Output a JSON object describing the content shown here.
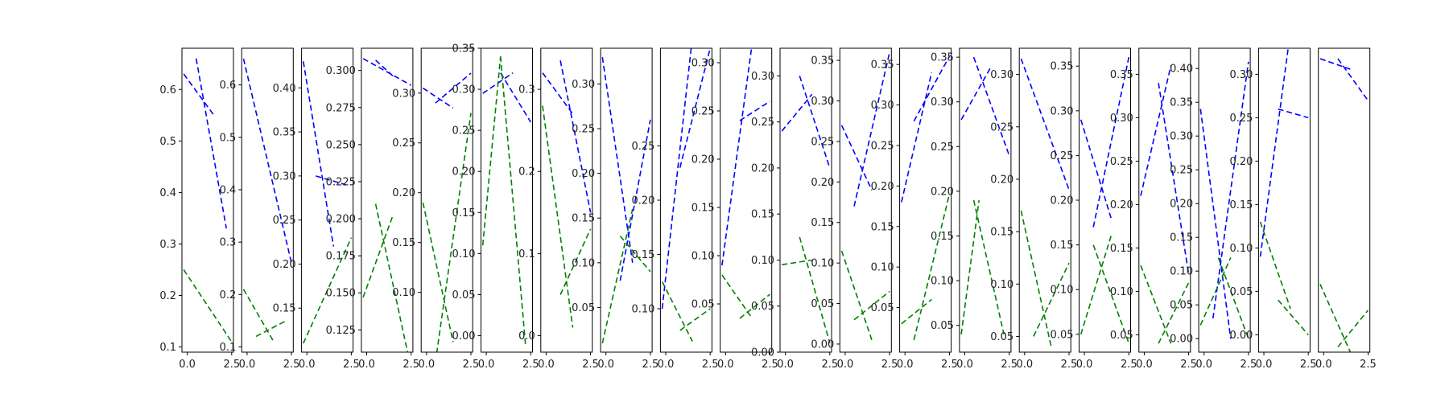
{
  "chart_data": [
    {
      "type": "line",
      "ylim": [
        0.09,
        0.68
      ],
      "yticks": [
        "0.1",
        "0.2",
        "0.3",
        "0.4",
        "0.5",
        "0.6"
      ],
      "series": [
        {
          "color": "#0000ff",
          "x": [
            -0.2,
            1.5
          ],
          "y": [
            0.63,
            0.55
          ]
        },
        {
          "color": "#0000ff",
          "x": [
            0.5,
            2.2
          ],
          "y": [
            0.66,
            0.33
          ]
        },
        {
          "color": "#008000",
          "x": [
            -0.2,
            2.5
          ],
          "y": [
            0.25,
            0.11
          ]
        }
      ]
    },
    {
      "type": "line",
      "ylim": [
        0.09,
        0.67
      ],
      "yticks": [
        "0.1",
        "0.2",
        "0.3",
        "0.4",
        "0.5",
        "0.6"
      ],
      "series": [
        {
          "color": "#0000ff",
          "x": [
            -0.2,
            2.5
          ],
          "y": [
            0.65,
            0.26
          ]
        },
        {
          "color": "#008000",
          "x": [
            -0.2,
            1.5
          ],
          "y": [
            0.21,
            0.11
          ]
        },
        {
          "color": "#008000",
          "x": [
            0.5,
            2.2
          ],
          "y": [
            0.12,
            0.15
          ]
        }
      ]
    },
    {
      "type": "line",
      "ylim": [
        0.1,
        0.445
      ],
      "yticks": [
        "0.15",
        "0.20",
        "0.25",
        "0.30",
        "0.35",
        "0.40"
      ],
      "series": [
        {
          "color": "#0000ff",
          "x": [
            -0.2,
            1.5
          ],
          "y": [
            0.43,
            0.22
          ]
        },
        {
          "color": "#0000ff",
          "x": [
            0.5,
            2.2
          ],
          "y": [
            0.3,
            0.29
          ]
        },
        {
          "color": "#008000",
          "x": [
            -0.2,
            2.5
          ],
          "y": [
            0.11,
            0.23
          ]
        }
      ]
    },
    {
      "type": "line",
      "ylim": [
        0.11,
        0.315
      ],
      "yticks": [
        "0.125",
        "0.150",
        "0.175",
        "0.200",
        "0.225",
        "0.250",
        "0.275",
        "0.300"
      ],
      "series": [
        {
          "color": "#0000ff",
          "x": [
            -0.2,
            2.5
          ],
          "y": [
            0.308,
            0.29
          ]
        },
        {
          "color": "#0000ff",
          "x": [
            0.5,
            1.5
          ],
          "y": [
            0.307,
            0.296
          ]
        },
        {
          "color": "#008000",
          "x": [
            -0.2,
            1.5
          ],
          "y": [
            0.147,
            0.203
          ]
        },
        {
          "color": "#008000",
          "x": [
            0.5,
            2.3
          ],
          "y": [
            0.21,
            0.11
          ]
        }
      ]
    },
    {
      "type": "line",
      "ylim": [
        0.04,
        0.345
      ],
      "yticks": [
        "0.10",
        "0.15",
        "0.20",
        "0.25",
        "0.30"
      ],
      "series": [
        {
          "color": "#0000ff",
          "x": [
            -0.2,
            1.5
          ],
          "y": [
            0.305,
            0.285
          ]
        },
        {
          "color": "#0000ff",
          "x": [
            0.5,
            2.5
          ],
          "y": [
            0.29,
            0.32
          ]
        },
        {
          "color": "#008000",
          "x": [
            -0.2,
            1.5
          ],
          "y": [
            0.19,
            0.05
          ]
        },
        {
          "color": "#008000",
          "x": [
            0.5,
            2.5
          ],
          "y": [
            0.03,
            0.28
          ]
        }
      ]
    },
    {
      "type": "line",
      "ylim": [
        -0.02,
        0.35
      ],
      "yticks": [
        "0.00",
        "0.05",
        "0.10",
        "0.15",
        "0.20",
        "0.25",
        "0.30",
        "0.35"
      ],
      "series": [
        {
          "color": "#0000ff",
          "x": [
            -0.2,
            1.5
          ],
          "y": [
            0.295,
            0.32
          ]
        },
        {
          "color": "#0000ff",
          "x": [
            0.8,
            2.5
          ],
          "y": [
            0.32,
            0.26
          ]
        },
        {
          "color": "#008000",
          "x": [
            -0.2,
            0.8
          ],
          "y": [
            0.11,
            0.34
          ]
        },
        {
          "color": "#008000",
          "x": [
            0.8,
            2.2
          ],
          "y": [
            0.34,
            -0.01
          ]
        }
      ]
    },
    {
      "type": "line",
      "ylim": [
        -0.02,
        0.35
      ],
      "yticks": [
        "0.0",
        "0.1",
        "0.2",
        "0.3"
      ],
      "series": [
        {
          "color": "#0000ff",
          "x": [
            -0.2,
            1.5
          ],
          "y": [
            0.32,
            0.27
          ]
        },
        {
          "color": "#0000ff",
          "x": [
            0.8,
            2.5
          ],
          "y": [
            0.335,
            0.15
          ]
        },
        {
          "color": "#008000",
          "x": [
            -0.2,
            1.5
          ],
          "y": [
            0.28,
            0.01
          ]
        },
        {
          "color": "#008000",
          "x": [
            0.8,
            2.5
          ],
          "y": [
            0.05,
            0.13
          ]
        }
      ]
    },
    {
      "type": "line",
      "ylim": [
        0.0,
        0.34
      ],
      "yticks": [
        "0.05",
        "0.10",
        "0.15",
        "0.20",
        "0.25",
        "0.30"
      ],
      "series": [
        {
          "color": "#0000ff",
          "x": [
            -0.2,
            1.5
          ],
          "y": [
            0.33,
            0.1
          ]
        },
        {
          "color": "#0000ff",
          "x": [
            0.8,
            2.5
          ],
          "y": [
            0.08,
            0.26
          ]
        },
        {
          "color": "#008000",
          "x": [
            -0.2,
            1.5
          ],
          "y": [
            0.01,
            0.16
          ]
        },
        {
          "color": "#008000",
          "x": [
            0.8,
            2.5
          ],
          "y": [
            0.13,
            0.09
          ]
        }
      ]
    },
    {
      "type": "line",
      "ylim": [
        0.06,
        0.34
      ],
      "yticks": [
        "0.10",
        "0.15",
        "0.20",
        "0.25"
      ],
      "series": [
        {
          "color": "#0000ff",
          "x": [
            -0.2,
            1.5
          ],
          "y": [
            0.1,
            0.35
          ]
        },
        {
          "color": "#0000ff",
          "x": [
            0.8,
            2.5
          ],
          "y": [
            0.23,
            0.34
          ]
        },
        {
          "color": "#008000",
          "x": [
            -0.2,
            1.5
          ],
          "y": [
            0.125,
            0.07
          ]
        },
        {
          "color": "#008000",
          "x": [
            0.8,
            2.5
          ],
          "y": [
            0.08,
            0.1
          ]
        }
      ]
    },
    {
      "type": "line",
      "ylim": [
        0.0,
        0.315
      ],
      "yticks": [
        "0.05",
        "0.10",
        "0.15",
        "0.20",
        "0.25",
        "0.30"
      ],
      "series": [
        {
          "color": "#0000ff",
          "x": [
            -0.2,
            1.5
          ],
          "y": [
            0.09,
            0.32
          ]
        },
        {
          "color": "#0000ff",
          "x": [
            0.8,
            2.5
          ],
          "y": [
            0.24,
            0.26
          ]
        },
        {
          "color": "#008000",
          "x": [
            -0.2,
            1.5
          ],
          "y": [
            0.08,
            0.035
          ]
        },
        {
          "color": "#008000",
          "x": [
            0.8,
            2.5
          ],
          "y": [
            0.035,
            0.06
          ]
        }
      ]
    },
    {
      "type": "line",
      "ylim": [
        0.0,
        0.33
      ],
      "yticks": [
        "0.00",
        "0.05",
        "0.10",
        "0.15",
        "0.20",
        "0.25",
        "0.30"
      ],
      "series": [
        {
          "color": "#0000ff",
          "x": [
            -0.2,
            1.5
          ],
          "y": [
            0.24,
            0.28
          ]
        },
        {
          "color": "#0000ff",
          "x": [
            0.8,
            2.5
          ],
          "y": [
            0.3,
            0.2
          ]
        },
        {
          "color": "#008000",
          "x": [
            -0.2,
            1.5
          ],
          "y": [
            0.095,
            0.1
          ]
        },
        {
          "color": "#008000",
          "x": [
            0.8,
            2.5
          ],
          "y": [
            0.125,
            0.01
          ]
        }
      ]
    },
    {
      "type": "line",
      "ylim": [
        -0.01,
        0.365
      ],
      "yticks": [
        "0.00",
        "0.05",
        "0.10",
        "0.15",
        "0.20",
        "0.25",
        "0.30",
        "0.35"
      ],
      "series": [
        {
          "color": "#0000ff",
          "x": [
            -0.2,
            1.5
          ],
          "y": [
            0.27,
            0.19
          ]
        },
        {
          "color": "#0000ff",
          "x": [
            0.5,
            2.5
          ],
          "y": [
            0.17,
            0.36
          ]
        },
        {
          "color": "#008000",
          "x": [
            -0.2,
            1.5
          ],
          "y": [
            0.115,
            0.005
          ]
        },
        {
          "color": "#008000",
          "x": [
            0.5,
            2.5
          ],
          "y": [
            0.03,
            0.065
          ]
        }
      ]
    },
    {
      "type": "line",
      "ylim": [
        -0.005,
        0.37
      ],
      "yticks": [
        "0.05",
        "0.10",
        "0.15",
        "0.20",
        "0.25",
        "0.30",
        "0.35"
      ],
      "series": [
        {
          "color": "#0000ff",
          "x": [
            -0.2,
            1.5
          ],
          "y": [
            0.18,
            0.34
          ]
        },
        {
          "color": "#0000ff",
          "x": [
            0.5,
            2.5
          ],
          "y": [
            0.28,
            0.36
          ]
        },
        {
          "color": "#008000",
          "x": [
            -0.2,
            1.5
          ],
          "y": [
            0.03,
            0.06
          ]
        },
        {
          "color": "#008000",
          "x": [
            0.5,
            2.5
          ],
          "y": [
            0.01,
            0.19
          ]
        }
      ]
    },
    {
      "type": "line",
      "ylim": [
        0.02,
        0.36
      ],
      "yticks": [
        "0.05",
        "0.10",
        "0.15",
        "0.20",
        "0.25",
        "0.30",
        "0.35"
      ],
      "series": [
        {
          "color": "#0000ff",
          "x": [
            -0.2,
            1.5
          ],
          "y": [
            0.28,
            0.34
          ]
        },
        {
          "color": "#0000ff",
          "x": [
            0.5,
            2.5
          ],
          "y": [
            0.35,
            0.24
          ]
        },
        {
          "color": "#008000",
          "x": [
            -0.2,
            0.8
          ],
          "y": [
            0.04,
            0.19
          ]
        },
        {
          "color": "#008000",
          "x": [
            0.5,
            2.2
          ],
          "y": [
            0.19,
            0.04
          ]
        }
      ]
    },
    {
      "type": "line",
      "ylim": [
        0.035,
        0.325
      ],
      "yticks": [
        "0.05",
        "0.10",
        "0.15",
        "0.20",
        "0.25",
        "0.30"
      ],
      "series": [
        {
          "color": "#0000ff",
          "x": [
            -0.2,
            2.5
          ],
          "y": [
            0.315,
            0.19
          ]
        },
        {
          "color": "#008000",
          "x": [
            -0.2,
            1.5
          ],
          "y": [
            0.17,
            0.04
          ]
        },
        {
          "color": "#008000",
          "x": [
            0.5,
            2.5
          ],
          "y": [
            0.05,
            0.12
          ]
        }
      ]
    },
    {
      "type": "line",
      "ylim": [
        0.03,
        0.37
      ],
      "yticks": [
        "0.05",
        "0.10",
        "0.15",
        "0.20",
        "0.25",
        "0.30",
        "0.35"
      ],
      "series": [
        {
          "color": "#0000ff",
          "x": [
            -0.2,
            1.5
          ],
          "y": [
            0.29,
            0.18
          ]
        },
        {
          "color": "#0000ff",
          "x": [
            0.5,
            2.5
          ],
          "y": [
            0.17,
            0.36
          ]
        },
        {
          "color": "#008000",
          "x": [
            -0.2,
            1.5
          ],
          "y": [
            0.05,
            0.16
          ]
        },
        {
          "color": "#008000",
          "x": [
            0.5,
            2.5
          ],
          "y": [
            0.15,
            0.04
          ]
        }
      ]
    },
    {
      "type": "line",
      "ylim": [
        0.03,
        0.38
      ],
      "yticks": [
        "0.05",
        "0.10",
        "0.15",
        "0.20",
        "0.25",
        "0.30",
        "0.35"
      ],
      "series": [
        {
          "color": "#0000ff",
          "x": [
            -0.2,
            1.5
          ],
          "y": [
            0.21,
            0.36
          ]
        },
        {
          "color": "#0000ff",
          "x": [
            0.8,
            2.5
          ],
          "y": [
            0.34,
            0.12
          ]
        },
        {
          "color": "#008000",
          "x": [
            -0.2,
            1.5
          ],
          "y": [
            0.13,
            0.04
          ]
        },
        {
          "color": "#008000",
          "x": [
            0.8,
            2.5
          ],
          "y": [
            0.04,
            0.11
          ]
        }
      ]
    },
    {
      "type": "line",
      "ylim": [
        -0.02,
        0.43
      ],
      "yticks": [
        "0.00",
        "0.05",
        "0.10",
        "0.15",
        "0.20",
        "0.25",
        "0.30",
        "0.35",
        "0.40"
      ],
      "series": [
        {
          "color": "#0000ff",
          "x": [
            -0.2,
            1.5
          ],
          "y": [
            0.34,
            0.0
          ]
        },
        {
          "color": "#0000ff",
          "x": [
            0.5,
            2.5
          ],
          "y": [
            0.03,
            0.41
          ]
        },
        {
          "color": "#008000",
          "x": [
            -0.2,
            1.5
          ],
          "y": [
            0.02,
            0.12
          ]
        },
        {
          "color": "#008000",
          "x": [
            0.8,
            2.5
          ],
          "y": [
            0.12,
            0.0
          ]
        }
      ]
    },
    {
      "type": "line",
      "ylim": [
        -0.02,
        0.33
      ],
      "yticks": [
        "0.00",
        "0.05",
        "0.10",
        "0.15",
        "0.20",
        "0.25",
        "0.30"
      ],
      "series": [
        {
          "color": "#0000ff",
          "x": [
            -0.2,
            1.5
          ],
          "y": [
            0.09,
            0.35
          ]
        },
        {
          "color": "#0000ff",
          "x": [
            0.8,
            2.5
          ],
          "y": [
            0.26,
            0.25
          ]
        },
        {
          "color": "#008000",
          "x": [
            -0.2,
            1.5
          ],
          "y": [
            0.13,
            0.03
          ]
        },
        {
          "color": "#008000",
          "x": [
            0.8,
            2.5
          ],
          "y": [
            0.04,
            0.0
          ]
        }
      ]
    },
    {
      "type": "line",
      "ylim": [
        0.05,
        0.34
      ],
      "yticks": [],
      "series": [
        {
          "color": "#0000ff",
          "x": [
            -0.2,
            1.5
          ],
          "y": [
            0.33,
            0.32
          ]
        },
        {
          "color": "#0000ff",
          "x": [
            0.8,
            2.5
          ],
          "y": [
            0.33,
            0.29
          ]
        },
        {
          "color": "#008000",
          "x": [
            -0.2,
            1.5
          ],
          "y": [
            0.115,
            0.05
          ]
        },
        {
          "color": "#008000",
          "x": [
            0.8,
            2.5
          ],
          "y": [
            0.055,
            0.09
          ]
        }
      ]
    }
  ],
  "xaxis": {
    "xlim": [
      -0.3,
      2.6
    ],
    "ticks": [
      0.0,
      2.5
    ],
    "tick_labels": [
      "0.0",
      "2.5"
    ]
  }
}
